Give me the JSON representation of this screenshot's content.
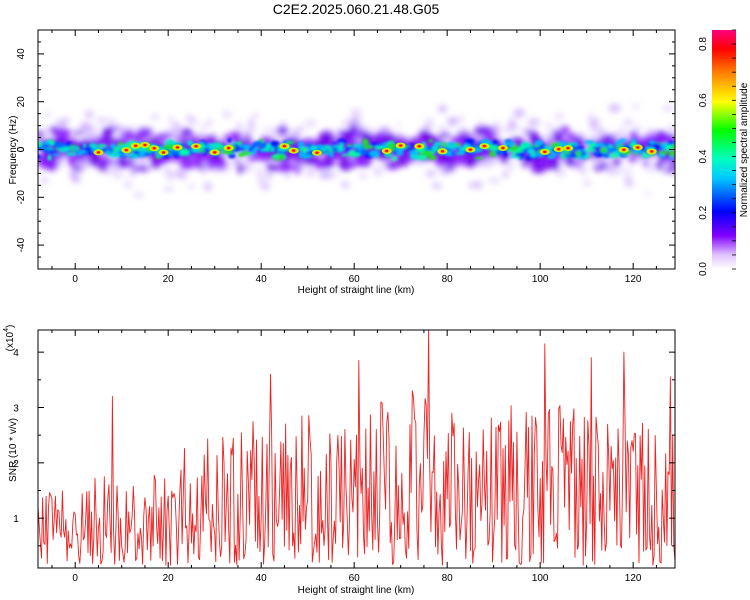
{
  "title": "C2E2.2025.060.21.48.G05",
  "chart_data": [
    {
      "type": "heatmap",
      "panel": "spectrogram",
      "xlabel": "Height of straight line (km)",
      "ylabel": "Frequency (Hz)",
      "xlim": [
        -8,
        129
      ],
      "ylim": [
        -50,
        50
      ],
      "xticks": [
        0,
        20,
        40,
        60,
        80,
        100,
        120
      ],
      "yticks": [
        -40,
        -20,
        0,
        20,
        40
      ],
      "colorbar": {
        "label": "Normalized spectral amplitude",
        "range": [
          0,
          0.85
        ],
        "ticks": [
          "0.0",
          "0.2",
          "0.4",
          "0.6",
          "0.8"
        ],
        "colormap": [
          "#ffffff",
          "#8000ff",
          "#0000ff",
          "#00ffff",
          "#00ff00",
          "#ffff00",
          "#ff8000",
          "#ff0000",
          "#ff0080"
        ]
      },
      "band": {
        "center_hz": 0,
        "core_halfwidth_hz": 4,
        "halo_halfwidth_hz": 9
      },
      "hotspots_km": [
        5,
        11,
        13,
        15,
        17,
        19,
        22,
        26,
        30,
        33,
        45,
        47,
        52,
        67,
        70,
        74,
        79,
        85,
        88,
        92,
        101,
        104,
        106,
        118,
        121,
        124
      ],
      "outliers": [
        {
          "x": 79,
          "y": 17
        },
        {
          "x": 81,
          "y": 12
        },
        {
          "x": 60,
          "y": 12
        },
        {
          "x": 2,
          "y": 10
        },
        {
          "x": 0,
          "y": -12
        }
      ]
    },
    {
      "type": "line",
      "panel": "snr",
      "xlabel": "Height of straight line (km)",
      "ylabel": "SNR (10 * v/v)",
      "scale_label": "(x10",
      "scale_exponent": "4",
      "xlim": [
        -8,
        129
      ],
      "ylim": [
        0.1,
        4.4
      ],
      "xticks": [
        0,
        20,
        40,
        60,
        80,
        100,
        120
      ],
      "yticks": [
        1,
        2,
        3,
        4
      ],
      "color": "#ee2222",
      "series": [
        {
          "name": "",
          "x_start": -8,
          "x_step": 0.25,
          "envelope": [
            [
              -8,
              1.4
            ],
            [
              0,
              1.7
            ],
            [
              10,
              1.8
            ],
            [
              20,
              1.9
            ],
            [
              25,
              2.5
            ],
            [
              40,
              2.8
            ],
            [
              60,
              3.0
            ],
            [
              75,
              3.4
            ],
            [
              85,
              3.0
            ],
            [
              100,
              3.1
            ],
            [
              115,
              2.9
            ],
            [
              129,
              2.6
            ]
          ],
          "peaks": [
            {
              "x": 8,
              "y": 3.2
            },
            {
              "x": 42,
              "y": 3.6
            },
            {
              "x": 76,
              "y": 4.4
            },
            {
              "x": 101,
              "y": 4.15
            },
            {
              "x": 118,
              "y": 4.0
            },
            {
              "x": 111,
              "y": 3.9
            },
            {
              "x": 128,
              "y": 3.55
            },
            {
              "x": 61,
              "y": 3.85
            }
          ]
        }
      ]
    }
  ]
}
